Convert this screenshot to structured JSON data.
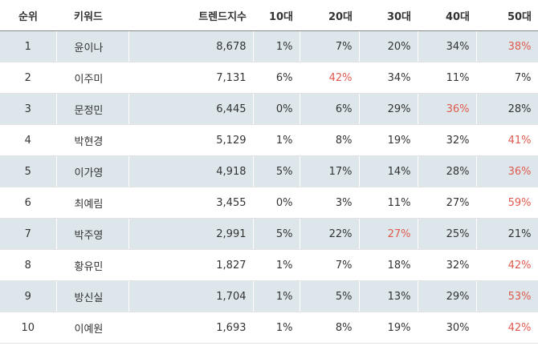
{
  "table": {
    "header": [
      "순위",
      "키워드",
      "트렌드지수",
      "10대",
      "20대",
      "30대",
      "40대",
      "50대"
    ],
    "rows": [
      [
        "1",
        "윤이나",
        "8,678",
        "1%",
        "7%",
        "20%",
        "34%",
        "38%"
      ],
      [
        "2",
        "이주미",
        "7,131",
        "6%",
        "42%",
        "34%",
        "11%",
        "7%"
      ],
      [
        "3",
        "문정민",
        "6,445",
        "0%",
        "6%",
        "29%",
        "36%",
        "28%"
      ],
      [
        "4",
        "박현경",
        "5,129",
        "1%",
        "8%",
        "19%",
        "32%",
        "41%"
      ],
      [
        "5",
        "이가영",
        "4,918",
        "5%",
        "17%",
        "14%",
        "28%",
        "36%"
      ],
      [
        "6",
        "최예림",
        "3,455",
        "0%",
        "3%",
        "11%",
        "27%",
        "59%"
      ],
      [
        "7",
        "박주영",
        "2,991",
        "5%",
        "22%",
        "27%",
        "25%",
        "21%"
      ],
      [
        "8",
        "황유민",
        "1,827",
        "1%",
        "7%",
        "18%",
        "32%",
        "42%"
      ],
      [
        "9",
        "방신실",
        "1,704",
        "1%",
        "5%",
        "13%",
        "29%",
        "53%"
      ],
      [
        "10",
        "이예원",
        "1,693",
        "1%",
        "8%",
        "19%",
        "30%",
        "42%"
      ]
    ],
    "highlight": [
      7,
      4,
      6,
      7,
      7,
      7,
      5,
      7,
      7,
      7
    ],
    "highlight_color": "#e05a4f"
  }
}
